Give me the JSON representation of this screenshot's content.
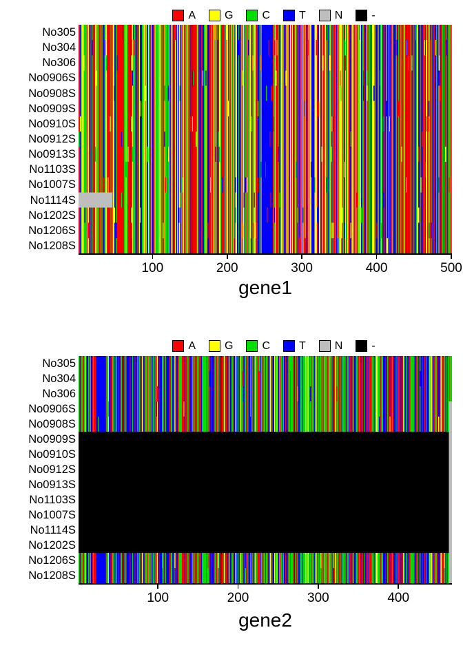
{
  "figure": {
    "background": "#ffffff",
    "nucleotide_colors": {
      "A": "#ff0000",
      "G": "#ffff00",
      "C": "#00e000",
      "T": "#0000ff",
      "N": "#bebebe",
      "-": "#000000"
    },
    "legend_items": [
      {
        "label": "A",
        "color": "#ff0000"
      },
      {
        "label": "G",
        "color": "#ffff00"
      },
      {
        "label": "C",
        "color": "#00e000"
      },
      {
        "label": "T",
        "color": "#0000ff"
      },
      {
        "label": "N",
        "color": "#bebebe"
      },
      {
        "label": "-",
        "color": "#000000"
      }
    ]
  },
  "chart_data": [
    {
      "type": "heatmap",
      "title": "gene1",
      "ylabels": [
        "No305",
        "No304",
        "No306",
        "No0906S",
        "No0908S",
        "No0909S",
        "No0910S",
        "No0912S",
        "No0913S",
        "No1103S",
        "No1007S",
        "No1114S",
        "No1202S",
        "No1206S",
        "No1208S"
      ],
      "n_sequences": 15,
      "n_sites": 500,
      "xlim": [
        1,
        500
      ],
      "xticks": [
        100,
        200,
        300,
        400,
        500
      ],
      "legend_order": [
        "A",
        "G",
        "C",
        "T",
        "N",
        "-"
      ],
      "pattern": {
        "seed": 1337,
        "base_weights": {
          "A": 0.33,
          "G": 0.2,
          "C": 0.22,
          "T": 0.25
        },
        "variant_rate": 0.022
      },
      "features": [
        {
          "desc": "conserved T block",
          "rows": "all",
          "cols": [
            247,
            260
          ],
          "base": "T",
          "stage": "pre"
        },
        {
          "desc": "leading ambiguous block (N)",
          "rows": [
            "No1114S"
          ],
          "cols": [
            1,
            45
          ],
          "base": "N",
          "stage": "post"
        }
      ]
    },
    {
      "type": "heatmap",
      "title": "gene2",
      "ylabels": [
        "No305",
        "No304",
        "No306",
        "No0906S",
        "No0908S",
        "No0909S",
        "No0910S",
        "No0912S",
        "No0913S",
        "No1103S",
        "No1007S",
        "No1114S",
        "No1202S",
        "No1206S",
        "No1208S"
      ],
      "n_sequences": 15,
      "n_sites": 466,
      "xlim": [
        1,
        466
      ],
      "xticks": [
        100,
        200,
        300,
        400
      ],
      "legend_order": [
        "A",
        "G",
        "C",
        "T",
        "N",
        "-"
      ],
      "pattern": {
        "seed": 4242,
        "base_weights": {
          "A": 0.3,
          "G": 0.06,
          "C": 0.34,
          "T": 0.3
        },
        "variant_rate": 0.008
      },
      "features": [
        {
          "desc": "conserved T block",
          "rows": "all",
          "cols": [
            23,
            33
          ],
          "base": "T",
          "stage": "pre"
        },
        {
          "desc": "sequences entirely missing (gap)",
          "rows": [
            "No0909S",
            "No0910S",
            "No0912S",
            "No0913S",
            "No1103S",
            "No1007S",
            "No1114S",
            "No1202S"
          ],
          "cols": [
            1,
            466
          ],
          "base": "-",
          "stage": "post"
        },
        {
          "desc": "trailing ambiguous block (N)",
          "rows": [
            "No0906S",
            "No0908S",
            "No0909S",
            "No0910S",
            "No0912S",
            "No0913S",
            "No1103S",
            "No1007S",
            "No1114S",
            "No1202S",
            "No1206S",
            "No1208S"
          ],
          "cols": [
            463,
            466
          ],
          "base": "N",
          "stage": "post"
        }
      ]
    }
  ]
}
